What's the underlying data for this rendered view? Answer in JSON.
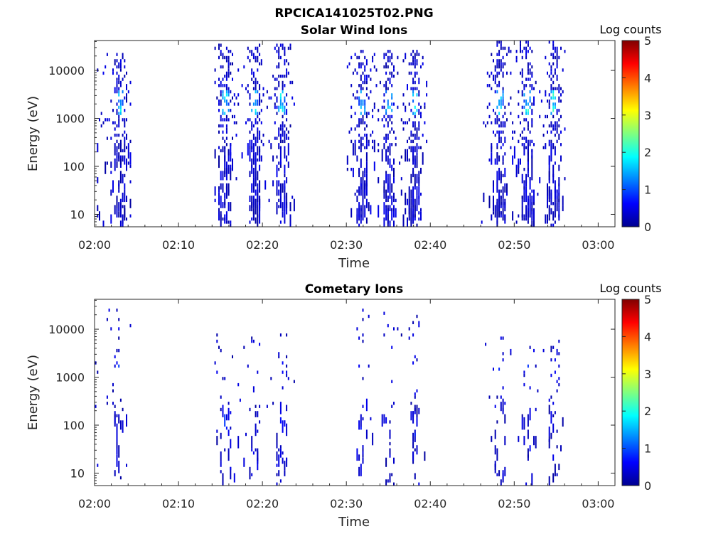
{
  "figure_title": "RPCICA141025T02.PNG",
  "colorbar_label": "Log counts",
  "colorbar_ticks": [
    "0",
    "1",
    "2",
    "3",
    "4",
    "5"
  ],
  "chart_data": [
    {
      "type": "heatmap",
      "title": "Solar Wind Ions",
      "xlabel": "Time",
      "ylabel": "Energy (eV)",
      "y_scale": "log",
      "xlim": [
        "02:00",
        "03:02"
      ],
      "ylim": [
        5.5,
        42000
      ],
      "x_ticks": [
        "02:00",
        "02:10",
        "02:20",
        "02:30",
        "02:40",
        "02:50",
        "03:00"
      ],
      "y_ticks": [
        "10",
        "100",
        "1000",
        "10000"
      ],
      "colorbar": {
        "label": "Log counts",
        "range": [
          0,
          5
        ],
        "colormap": "jet"
      },
      "grid": false,
      "bursts": [
        {
          "start": "02:00",
          "duration_min": 4.2,
          "peak_min": 3.0,
          "e_peak": [
            1400,
            2800
          ],
          "e_top": 20000,
          "peak_value": 2.1
        },
        {
          "start": "02:14",
          "duration_min": 9.8,
          "peak_min": [
            15.5,
            19.0,
            22.2
          ],
          "e_peak": [
            1400,
            2800
          ],
          "e_top": 35000,
          "peak_value": 2.3
        },
        {
          "start": "02:30",
          "duration_min": 9.5,
          "peak_min": [
            31.8,
            35.0,
            38.1
          ],
          "e_peak": [
            1400,
            2800
          ],
          "e_top": 25000,
          "peak_value": 2.2
        },
        {
          "start": "02:46",
          "duration_min": 10.0,
          "peak_min": [
            48.2,
            51.5,
            54.6
          ],
          "e_peak": [
            1400,
            2800
          ],
          "e_top": 40000,
          "peak_value": 2.4
        }
      ]
    },
    {
      "type": "heatmap",
      "title": "Cometary Ions",
      "xlabel": "Time",
      "ylabel": "Energy (eV)",
      "y_scale": "log",
      "xlim": [
        "02:00",
        "03:02"
      ],
      "ylim": [
        5.5,
        42000
      ],
      "x_ticks": [
        "02:00",
        "02:10",
        "02:20",
        "02:30",
        "02:40",
        "02:50",
        "03:00"
      ],
      "y_ticks": [
        "10",
        "100",
        "1000",
        "10000"
      ],
      "colorbar": {
        "label": "Log counts",
        "range": [
          0,
          5
        ],
        "colormap": "jet"
      },
      "grid": false,
      "bursts": [
        {
          "start": "02:00",
          "duration_min": 4.2,
          "peak_min": 2.8,
          "e_peak": [
            1500
          ],
          "e_top": 25000,
          "peak_value": 1.0
        },
        {
          "start": "02:14",
          "duration_min": 9.8,
          "peak_min": [
            15.5,
            19.0,
            22.2
          ],
          "e_peak": [
            1500,
            90
          ],
          "e_top": 8000,
          "peak_value": 1.0
        },
        {
          "start": "02:30",
          "duration_min": 9.5,
          "peak_min": [
            31.8,
            35.0,
            38.1
          ],
          "e_peak": [
            1500,
            70
          ],
          "e_top": 26000,
          "peak_value": 1.0
        },
        {
          "start": "02:46",
          "duration_min": 10.0,
          "peak_min": [
            48.2,
            51.5,
            54.6
          ],
          "e_peak": [
            1500,
            30
          ],
          "e_top": 7000,
          "peak_value": 1.0
        }
      ]
    }
  ]
}
